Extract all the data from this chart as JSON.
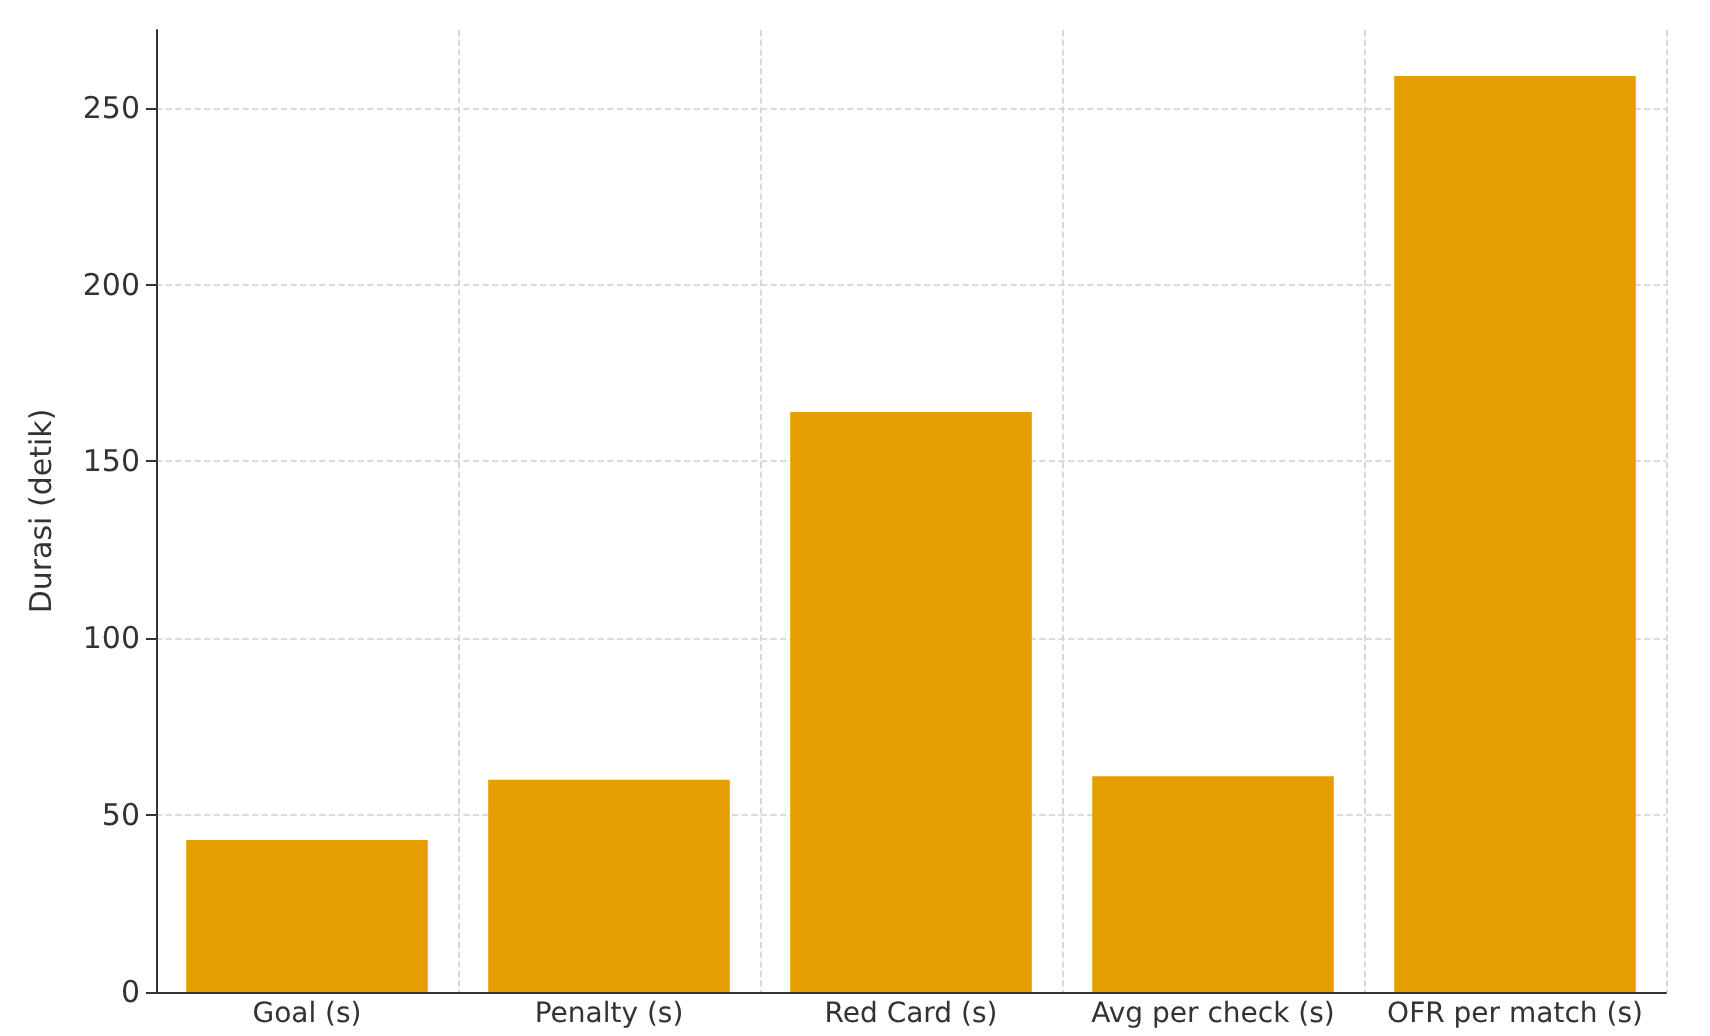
{
  "chart_data": {
    "type": "bar",
    "ylabel": "Durasi (detik)",
    "categories": [
      "Goal (s)",
      "Penalty (s)",
      "Red Card (s)",
      "Avg per check (s)",
      "OFR per match (s)"
    ],
    "values": [
      43,
      60,
      164,
      61,
      259
    ],
    "color": "#e69f00",
    "ylim": [
      0,
      272
    ],
    "yticks": [
      0,
      50,
      100,
      150,
      200,
      250
    ],
    "grid": true
  }
}
